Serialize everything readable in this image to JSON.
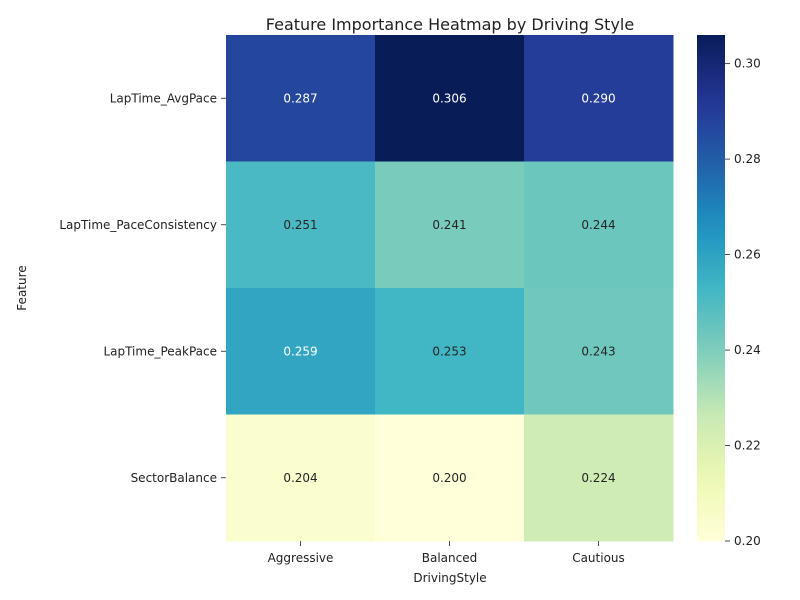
{
  "chart_data": {
    "type": "heatmap",
    "title": "Feature Importance Heatmap by Driving Style",
    "xlabel": "DrivingStyle",
    "ylabel": "Feature",
    "x_categories": [
      "Aggressive",
      "Balanced",
      "Cautious"
    ],
    "y_categories": [
      "LapTime_AvgPace",
      "LapTime_PaceConsistency",
      "LapTime_PeakPace",
      "SectorBalance"
    ],
    "values": [
      [
        0.287,
        0.306,
        0.29
      ],
      [
        0.251,
        0.241,
        0.244
      ],
      [
        0.259,
        0.253,
        0.243
      ],
      [
        0.204,
        0.2,
        0.224
      ]
    ],
    "value_labels": [
      [
        "0.287",
        "0.306",
        "0.290"
      ],
      [
        "0.251",
        "0.241",
        "0.244"
      ],
      [
        "0.259",
        "0.253",
        "0.243"
      ],
      [
        "0.204",
        "0.200",
        "0.224"
      ]
    ],
    "colorbar": {
      "colormap": "YlGnBu",
      "vmin": 0.2,
      "vmax": 0.306,
      "ticks": [
        0.2,
        0.22,
        0.24,
        0.26,
        0.28,
        0.3
      ],
      "tick_labels": [
        "0.20",
        "0.22",
        "0.24",
        "0.26",
        "0.28",
        "0.30"
      ]
    }
  }
}
